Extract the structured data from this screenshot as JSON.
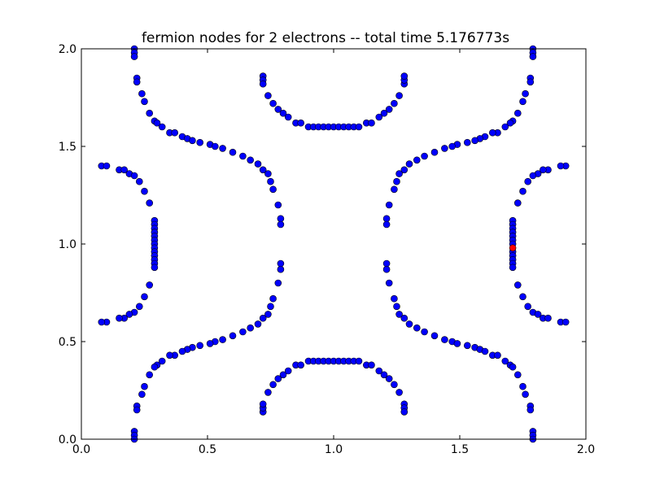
{
  "chart_data": {
    "type": "scatter",
    "title": "fermion nodes for 2 electrons -- total time 5.176773s",
    "xlabel": "",
    "ylabel": "",
    "xlim": [
      0.0,
      2.0
    ],
    "ylim": [
      0.0,
      2.0
    ],
    "grid": false,
    "legend": "none",
    "x_ticks": [
      "0.0",
      "0.5",
      "1.0",
      "1.5",
      "2.0"
    ],
    "y_ticks": [
      "0.0",
      "0.5",
      "1.0",
      "1.5",
      "2.0"
    ],
    "series": [
      {
        "color": "#0000ff",
        "edge_color": "#000000",
        "points": [
          [
            0.21,
            2.0
          ],
          [
            0.21,
            1.98
          ],
          [
            0.21,
            1.96
          ],
          [
            0.22,
            1.85
          ],
          [
            0.22,
            1.83
          ],
          [
            0.24,
            1.77
          ],
          [
            0.25,
            1.73
          ],
          [
            0.27,
            1.67
          ],
          [
            0.29,
            1.63
          ],
          [
            0.3,
            1.62
          ],
          [
            0.32,
            1.6
          ],
          [
            0.35,
            1.57
          ],
          [
            0.37,
            1.57
          ],
          [
            0.4,
            1.55
          ],
          [
            0.42,
            1.54
          ],
          [
            0.44,
            1.53
          ],
          [
            0.47,
            1.52
          ],
          [
            0.51,
            1.51
          ],
          [
            0.53,
            1.5
          ],
          [
            0.56,
            1.49
          ],
          [
            0.6,
            1.47
          ],
          [
            0.64,
            1.45
          ],
          [
            0.67,
            1.43
          ],
          [
            0.7,
            1.41
          ],
          [
            0.72,
            1.38
          ],
          [
            0.74,
            1.36
          ],
          [
            0.75,
            1.32
          ],
          [
            0.76,
            1.28
          ],
          [
            0.78,
            1.2
          ],
          [
            0.79,
            1.13
          ],
          [
            0.79,
            1.1
          ],
          [
            0.79,
            0.9
          ],
          [
            0.79,
            0.87
          ],
          [
            0.78,
            0.8
          ],
          [
            0.76,
            0.72
          ],
          [
            0.75,
            0.68
          ],
          [
            0.74,
            0.64
          ],
          [
            0.72,
            0.62
          ],
          [
            0.7,
            0.59
          ],
          [
            0.67,
            0.57
          ],
          [
            0.64,
            0.55
          ],
          [
            0.6,
            0.53
          ],
          [
            0.56,
            0.51
          ],
          [
            0.53,
            0.5
          ],
          [
            0.51,
            0.49
          ],
          [
            0.47,
            0.48
          ],
          [
            0.44,
            0.47
          ],
          [
            0.42,
            0.46
          ],
          [
            0.4,
            0.45
          ],
          [
            0.37,
            0.43
          ],
          [
            0.35,
            0.43
          ],
          [
            0.32,
            0.4
          ],
          [
            0.3,
            0.38
          ],
          [
            0.29,
            0.37
          ],
          [
            0.27,
            0.33
          ],
          [
            0.25,
            0.27
          ],
          [
            0.24,
            0.23
          ],
          [
            0.22,
            0.17
          ],
          [
            0.22,
            0.15
          ],
          [
            0.21,
            0.04
          ],
          [
            0.21,
            0.02
          ],
          [
            0.21,
            0.0
          ],
          [
            1.79,
            2.0
          ],
          [
            1.79,
            1.98
          ],
          [
            1.79,
            1.96
          ],
          [
            1.78,
            1.85
          ],
          [
            1.78,
            1.83
          ],
          [
            1.76,
            1.77
          ],
          [
            1.75,
            1.73
          ],
          [
            1.73,
            1.67
          ],
          [
            1.71,
            1.63
          ],
          [
            1.7,
            1.62
          ],
          [
            1.68,
            1.6
          ],
          [
            1.65,
            1.57
          ],
          [
            1.63,
            1.57
          ],
          [
            1.6,
            1.55
          ],
          [
            1.58,
            1.54
          ],
          [
            1.56,
            1.53
          ],
          [
            1.53,
            1.52
          ],
          [
            1.49,
            1.51
          ],
          [
            1.47,
            1.5
          ],
          [
            1.44,
            1.49
          ],
          [
            1.4,
            1.47
          ],
          [
            1.36,
            1.45
          ],
          [
            1.33,
            1.43
          ],
          [
            1.3,
            1.41
          ],
          [
            1.28,
            1.38
          ],
          [
            1.26,
            1.36
          ],
          [
            1.25,
            1.32
          ],
          [
            1.24,
            1.28
          ],
          [
            1.22,
            1.2
          ],
          [
            1.21,
            1.13
          ],
          [
            1.21,
            1.1
          ],
          [
            1.21,
            0.9
          ],
          [
            1.21,
            0.87
          ],
          [
            1.22,
            0.8
          ],
          [
            1.24,
            0.72
          ],
          [
            1.25,
            0.68
          ],
          [
            1.26,
            0.64
          ],
          [
            1.28,
            0.62
          ],
          [
            1.3,
            0.59
          ],
          [
            1.33,
            0.57
          ],
          [
            1.36,
            0.55
          ],
          [
            1.4,
            0.53
          ],
          [
            1.44,
            0.51
          ],
          [
            1.47,
            0.5
          ],
          [
            1.49,
            0.49
          ],
          [
            1.53,
            0.48
          ],
          [
            1.56,
            0.47
          ],
          [
            1.58,
            0.46
          ],
          [
            1.6,
            0.45
          ],
          [
            1.63,
            0.43
          ],
          [
            1.65,
            0.43
          ],
          [
            1.68,
            0.4
          ],
          [
            1.7,
            0.38
          ],
          [
            1.71,
            0.37
          ],
          [
            1.73,
            0.33
          ],
          [
            1.75,
            0.27
          ],
          [
            1.76,
            0.23
          ],
          [
            1.78,
            0.17
          ],
          [
            1.78,
            0.15
          ],
          [
            1.79,
            0.04
          ],
          [
            1.79,
            0.02
          ],
          [
            1.79,
            0.0
          ],
          [
            0.72,
            1.86
          ],
          [
            0.72,
            1.84
          ],
          [
            0.72,
            1.82
          ],
          [
            0.74,
            1.76
          ],
          [
            0.76,
            1.72
          ],
          [
            0.78,
            1.69
          ],
          [
            0.8,
            1.67
          ],
          [
            0.82,
            1.65
          ],
          [
            0.85,
            1.62
          ],
          [
            0.87,
            1.62
          ],
          [
            0.9,
            1.6
          ],
          [
            0.92,
            1.6
          ],
          [
            0.94,
            1.6
          ],
          [
            0.96,
            1.6
          ],
          [
            0.98,
            1.6
          ],
          [
            1.0,
            1.6
          ],
          [
            1.02,
            1.6
          ],
          [
            1.04,
            1.6
          ],
          [
            1.06,
            1.6
          ],
          [
            1.08,
            1.6
          ],
          [
            1.1,
            1.6
          ],
          [
            1.13,
            1.62
          ],
          [
            1.15,
            1.62
          ],
          [
            1.18,
            1.65
          ],
          [
            1.2,
            1.67
          ],
          [
            1.22,
            1.69
          ],
          [
            1.24,
            1.72
          ],
          [
            1.26,
            1.76
          ],
          [
            1.28,
            1.82
          ],
          [
            1.28,
            1.84
          ],
          [
            1.28,
            1.86
          ],
          [
            0.72,
            0.14
          ],
          [
            0.72,
            0.16
          ],
          [
            0.72,
            0.18
          ],
          [
            0.74,
            0.24
          ],
          [
            0.76,
            0.28
          ],
          [
            0.78,
            0.31
          ],
          [
            0.8,
            0.33
          ],
          [
            0.82,
            0.35
          ],
          [
            0.85,
            0.38
          ],
          [
            0.87,
            0.38
          ],
          [
            0.9,
            0.4
          ],
          [
            0.92,
            0.4
          ],
          [
            0.94,
            0.4
          ],
          [
            0.96,
            0.4
          ],
          [
            0.98,
            0.4
          ],
          [
            1.0,
            0.4
          ],
          [
            1.02,
            0.4
          ],
          [
            1.04,
            0.4
          ],
          [
            1.06,
            0.4
          ],
          [
            1.08,
            0.4
          ],
          [
            1.1,
            0.4
          ],
          [
            1.13,
            0.38
          ],
          [
            1.15,
            0.38
          ],
          [
            1.18,
            0.35
          ],
          [
            1.2,
            0.33
          ],
          [
            1.22,
            0.31
          ],
          [
            1.24,
            0.28
          ],
          [
            1.26,
            0.24
          ],
          [
            1.28,
            0.18
          ],
          [
            1.28,
            0.16
          ],
          [
            1.28,
            0.14
          ],
          [
            0.08,
            1.4
          ],
          [
            0.1,
            1.4
          ],
          [
            0.15,
            1.38
          ],
          [
            0.17,
            1.38
          ],
          [
            0.19,
            1.36
          ],
          [
            0.21,
            1.35
          ],
          [
            0.23,
            1.32
          ],
          [
            0.25,
            1.27
          ],
          [
            0.27,
            1.21
          ],
          [
            0.29,
            1.12
          ],
          [
            0.29,
            1.1
          ],
          [
            0.29,
            1.08
          ],
          [
            0.29,
            1.06
          ],
          [
            0.29,
            1.04
          ],
          [
            0.29,
            1.02
          ],
          [
            0.29,
            1.0
          ],
          [
            0.29,
            0.98
          ],
          [
            0.29,
            0.96
          ],
          [
            0.29,
            0.94
          ],
          [
            0.29,
            0.92
          ],
          [
            0.29,
            0.9
          ],
          [
            0.29,
            0.88
          ],
          [
            0.27,
            0.79
          ],
          [
            0.25,
            0.73
          ],
          [
            0.23,
            0.68
          ],
          [
            0.21,
            0.65
          ],
          [
            0.19,
            0.64
          ],
          [
            0.17,
            0.62
          ],
          [
            0.15,
            0.62
          ],
          [
            0.1,
            0.6
          ],
          [
            0.08,
            0.6
          ],
          [
            1.92,
            1.4
          ],
          [
            1.9,
            1.4
          ],
          [
            1.85,
            1.38
          ],
          [
            1.83,
            1.38
          ],
          [
            1.81,
            1.36
          ],
          [
            1.79,
            1.35
          ],
          [
            1.77,
            1.32
          ],
          [
            1.75,
            1.27
          ],
          [
            1.73,
            1.21
          ],
          [
            1.71,
            1.12
          ],
          [
            1.71,
            1.1
          ],
          [
            1.71,
            1.08
          ],
          [
            1.71,
            1.06
          ],
          [
            1.71,
            1.04
          ],
          [
            1.71,
            1.02
          ],
          [
            1.71,
            1.0
          ],
          [
            1.71,
            0.96
          ],
          [
            1.71,
            0.94
          ],
          [
            1.71,
            0.92
          ],
          [
            1.71,
            0.9
          ],
          [
            1.71,
            0.88
          ],
          [
            1.73,
            0.79
          ],
          [
            1.75,
            0.73
          ],
          [
            1.77,
            0.68
          ],
          [
            1.79,
            0.65
          ],
          [
            1.81,
            0.64
          ],
          [
            1.83,
            0.62
          ],
          [
            1.85,
            0.62
          ],
          [
            1.9,
            0.6
          ],
          [
            1.92,
            0.6
          ]
        ]
      },
      {
        "color": "#ff0000",
        "edge_color": "#000000",
        "points": [
          [
            1.71,
            0.98
          ]
        ]
      }
    ]
  }
}
